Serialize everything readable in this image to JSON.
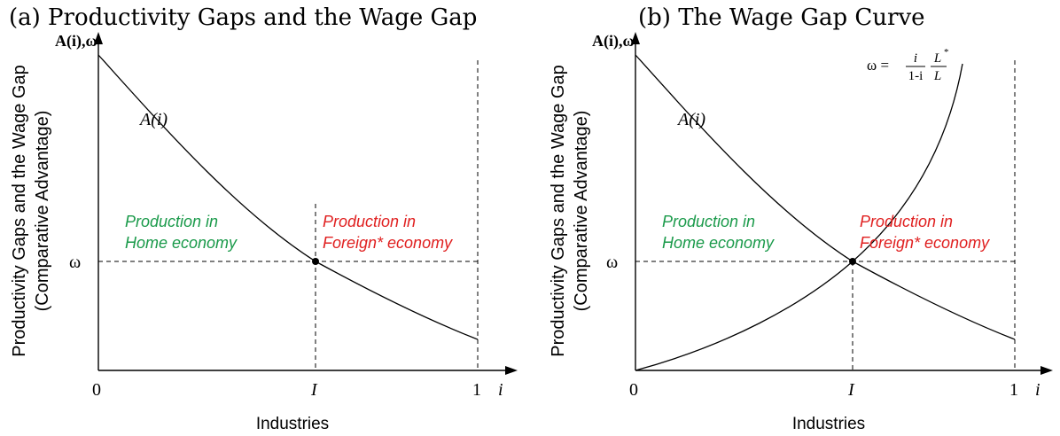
{
  "panels": [
    {
      "title": "(a) Productivity Gaps and the Wage Gap",
      "y_axis_label_line1": "Productivity Gaps and the Wage Gap",
      "y_axis_label_line2": "(Comparative Advantage)",
      "y_axis_symbol": "A(i),ω",
      "x_axis_label": "Industries",
      "x_axis_symbol": "i",
      "x_ticks": [
        "0",
        "I",
        "1"
      ],
      "y_tick": "ω",
      "curve_label": "A(i)",
      "home_region_line1": "Production in",
      "home_region_line2": "Home economy",
      "foreign_region_line1": "Production in",
      "foreign_region_line2": "Foreign* economy"
    },
    {
      "title": "(b) The Wage Gap Curve",
      "y_axis_label_line1": "Productivity Gaps and the Wage Gap",
      "y_axis_label_line2": "(Comparative Advantage)",
      "y_axis_symbol": "A(i),ω",
      "x_axis_label": "Industries",
      "x_axis_symbol": "i",
      "x_ticks": [
        "0",
        "I",
        "1"
      ],
      "y_tick": "ω",
      "curve_label": "A(i)",
      "wage_curve_lhs": "ω =",
      "wage_curve_num1": "i",
      "wage_curve_den1": "1-i",
      "wage_curve_num2": "L",
      "wage_curve_star": "*",
      "wage_curve_den2": "L",
      "home_region_line1": "Production in",
      "home_region_line2": "Home economy",
      "foreign_region_line1": "Production in",
      "foreign_region_line2": "Foreign* economy"
    }
  ],
  "colors": {
    "home": "#1a9a4a",
    "foreign": "#e02020",
    "axis": "#000000"
  }
}
